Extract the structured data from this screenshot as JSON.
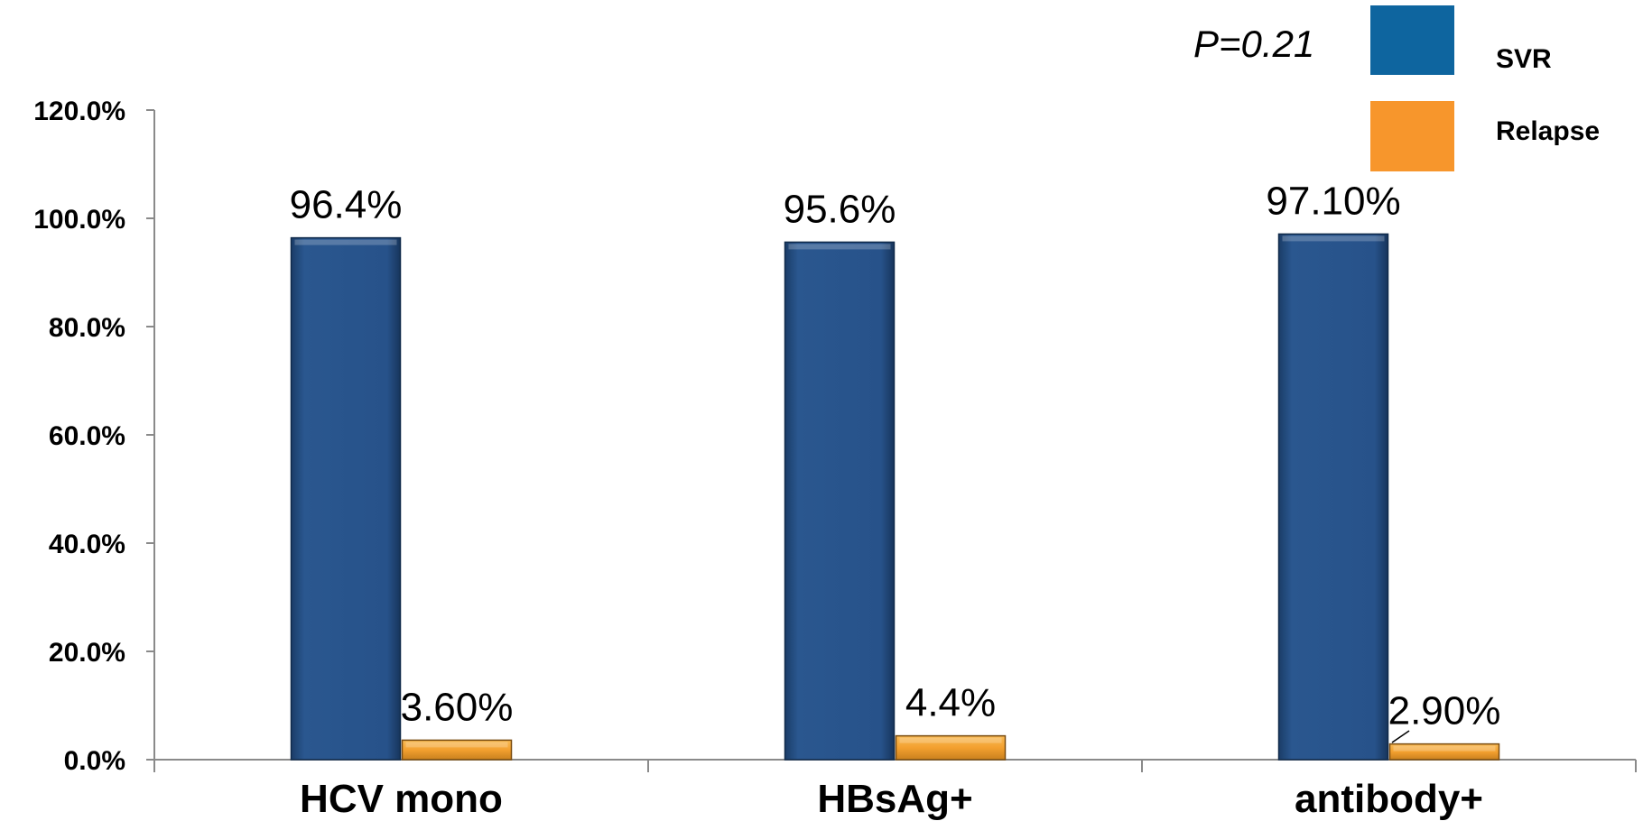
{
  "chart_data": {
    "type": "bar",
    "categories": [
      "HCV mono",
      "HBsAg+",
      "antibody+"
    ],
    "series": [
      {
        "name": "SVR",
        "values": [
          96.4,
          95.6,
          97.1
        ],
        "labels": [
          "96.4%",
          "95.6%",
          "97.10%"
        ],
        "color": "#27528A",
        "legend_color": "#0E659F"
      },
      {
        "name": "Relapse",
        "values": [
          3.6,
          4.4,
          2.9
        ],
        "labels": [
          "3.60%",
          "4.4%",
          "2.90%"
        ],
        "color": "#F3A02F",
        "legend_color": "#F7962C"
      }
    ],
    "y_ticks": [
      "0.0%",
      "20.0%",
      "40.0%",
      "60.0%",
      "80.0%",
      "100.0%",
      "120.0%"
    ],
    "ylim": [
      0,
      120
    ],
    "title": "",
    "xlabel": "",
    "ylabel": "",
    "annotation": "P=0.21",
    "legend_position": "top-right",
    "grid": false
  }
}
